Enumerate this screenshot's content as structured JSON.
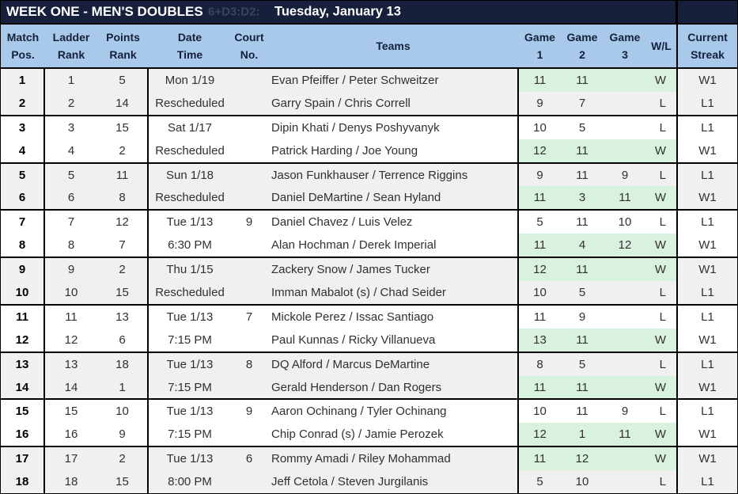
{
  "title": {
    "left": "WEEK ONE - MEN'S DOUBLES",
    "ghost": "6+D3:D2:",
    "date": "Tuesday, January 13"
  },
  "colors": {
    "navy": "#16203c",
    "header_blue": "#a9c9ea",
    "win_green": "#d9f2df",
    "alt_gray": "#f0f0f0",
    "border": "#000000"
  },
  "columns": [
    {
      "id": "pos",
      "line1": "Match",
      "line2": "Pos."
    },
    {
      "id": "ladder",
      "line1": "Ladder",
      "line2": "Rank"
    },
    {
      "id": "points",
      "line1": "Points",
      "line2": "Rank"
    },
    {
      "id": "date",
      "line1": "Date",
      "line2": "Time"
    },
    {
      "id": "court",
      "line1": "Court",
      "line2": "No."
    },
    {
      "id": "team",
      "line1": "Teams",
      "line2": ""
    },
    {
      "id": "g1",
      "line1": "Game",
      "line2": "1"
    },
    {
      "id": "g2",
      "line1": "Game",
      "line2": "2"
    },
    {
      "id": "g3",
      "line1": "Game",
      "line2": "3"
    },
    {
      "id": "wl",
      "line1": "W/L",
      "line2": ""
    },
    {
      "id": "streak",
      "line1": "Current",
      "line2": "Streak"
    }
  ],
  "matches": [
    {
      "shade": "gray",
      "rows": [
        {
          "pos": "1",
          "ladder": "1",
          "points": "5",
          "date": "Mon 1/19",
          "court": "",
          "team": "Evan Pfeiffer / Peter Schweitzer",
          "g1": "11",
          "g2": "11",
          "g3": "",
          "wl": "W",
          "streak": "W1",
          "winner": true
        },
        {
          "pos": "2",
          "ladder": "2",
          "points": "14",
          "date": "Rescheduled",
          "court": "",
          "team": "Garry Spain / Chris Correll",
          "g1": "9",
          "g2": "7",
          "g3": "",
          "wl": "L",
          "streak": "L1",
          "winner": false
        }
      ]
    },
    {
      "shade": "white",
      "rows": [
        {
          "pos": "3",
          "ladder": "3",
          "points": "15",
          "date": "Sat 1/17",
          "court": "",
          "team": "Dipin Khati / Denys Poshyvanyk",
          "g1": "10",
          "g2": "5",
          "g3": "",
          "wl": "L",
          "streak": "L1",
          "winner": false
        },
        {
          "pos": "4",
          "ladder": "4",
          "points": "2",
          "date": "Rescheduled",
          "court": "",
          "team": "Patrick  Harding / Joe Young",
          "g1": "12",
          "g2": "11",
          "g3": "",
          "wl": "W",
          "streak": "W1",
          "winner": true
        }
      ]
    },
    {
      "shade": "gray",
      "rows": [
        {
          "pos": "5",
          "ladder": "5",
          "points": "11",
          "date": "Sun 1/18",
          "court": "",
          "team": "Jason Funkhauser / Terrence Riggins",
          "g1": "9",
          "g2": "11",
          "g3": "9",
          "wl": "L",
          "streak": "L1",
          "winner": false
        },
        {
          "pos": "6",
          "ladder": "6",
          "points": "8",
          "date": "Rescheduled",
          "court": "",
          "team": "Daniel DeMartine / Sean Hyland",
          "g1": "11",
          "g2": "3",
          "g3": "11",
          "wl": "W",
          "streak": "W1",
          "winner": true
        }
      ]
    },
    {
      "shade": "white",
      "rows": [
        {
          "pos": "7",
          "ladder": "7",
          "points": "12",
          "date": "Tue 1/13",
          "court": "9",
          "team": "Daniel Chavez / Luis Velez",
          "g1": "5",
          "g2": "11",
          "g3": "10",
          "wl": "L",
          "streak": "L1",
          "winner": false
        },
        {
          "pos": "8",
          "ladder": "8",
          "points": "7",
          "date": "6:30 PM",
          "court": "",
          "team": "Alan Hochman / Derek Imperial",
          "g1": "11",
          "g2": "4",
          "g3": "12",
          "wl": "W",
          "streak": "W1",
          "winner": true
        }
      ]
    },
    {
      "shade": "gray",
      "rows": [
        {
          "pos": "9",
          "ladder": "9",
          "points": "2",
          "date": "Thu 1/15",
          "court": "",
          "team": "Zackery Snow / James Tucker",
          "g1": "12",
          "g2": "11",
          "g3": "",
          "wl": "W",
          "streak": "W1",
          "winner": true
        },
        {
          "pos": "10",
          "ladder": "10",
          "points": "15",
          "date": "Rescheduled",
          "court": "",
          "team": "Imman Mabalot (s) / Chad Seider",
          "g1": "10",
          "g2": "5",
          "g3": "",
          "wl": "L",
          "streak": "L1",
          "winner": false
        }
      ]
    },
    {
      "shade": "white",
      "rows": [
        {
          "pos": "11",
          "ladder": "11",
          "points": "13",
          "date": "Tue 1/13",
          "court": "7",
          "team": "Mickole Perez / Issac Santiago",
          "g1": "11",
          "g2": "9",
          "g3": "",
          "wl": "L",
          "streak": "L1",
          "winner": false
        },
        {
          "pos": "12",
          "ladder": "12",
          "points": "6",
          "date": "7:15 PM",
          "court": "",
          "team": "Paul Kunnas / Ricky Villanueva",
          "g1": "13",
          "g2": "11",
          "g3": "",
          "wl": "W",
          "streak": "W1",
          "winner": true
        }
      ]
    },
    {
      "shade": "gray",
      "rows": [
        {
          "pos": "13",
          "ladder": "13",
          "points": "18",
          "date": "Tue 1/13",
          "court": "8",
          "team": "DQ Alford / Marcus DeMartine",
          "g1": "8",
          "g2": "5",
          "g3": "",
          "wl": "L",
          "streak": "L1",
          "winner": false
        },
        {
          "pos": "14",
          "ladder": "14",
          "points": "1",
          "date": "7:15 PM",
          "court": "",
          "team": "Gerald  Henderson / Dan Rogers",
          "g1": "11",
          "g2": "11",
          "g3": "",
          "wl": "W",
          "streak": "W1",
          "winner": true
        }
      ]
    },
    {
      "shade": "white",
      "rows": [
        {
          "pos": "15",
          "ladder": "15",
          "points": "10",
          "date": "Tue 1/13",
          "court": "9",
          "team": "Aaron Ochinang / Tyler Ochinang",
          "g1": "10",
          "g2": "11",
          "g3": "9",
          "wl": "L",
          "streak": "L1",
          "winner": false
        },
        {
          "pos": "16",
          "ladder": "16",
          "points": "9",
          "date": "7:15 PM",
          "court": "",
          "team": "Chip Conrad (s) / Jamie Perozek",
          "g1": "12",
          "g2": "1",
          "g3": "11",
          "wl": "W",
          "streak": "W1",
          "winner": true
        }
      ]
    },
    {
      "shade": "gray",
      "rows": [
        {
          "pos": "17",
          "ladder": "17",
          "points": "2",
          "date": "Tue 1/13",
          "court": "6",
          "team": "Rommy Amadi / Riley Mohammad",
          "g1": "11",
          "g2": "12",
          "g3": "",
          "wl": "W",
          "streak": "W1",
          "winner": true
        },
        {
          "pos": "18",
          "ladder": "18",
          "points": "15",
          "date": "8:00 PM",
          "court": "",
          "team": "Jeff Cetola / Steven Jurgilanis",
          "g1": "5",
          "g2": "10",
          "g3": "",
          "wl": "L",
          "streak": "L1",
          "winner": false
        }
      ]
    }
  ]
}
